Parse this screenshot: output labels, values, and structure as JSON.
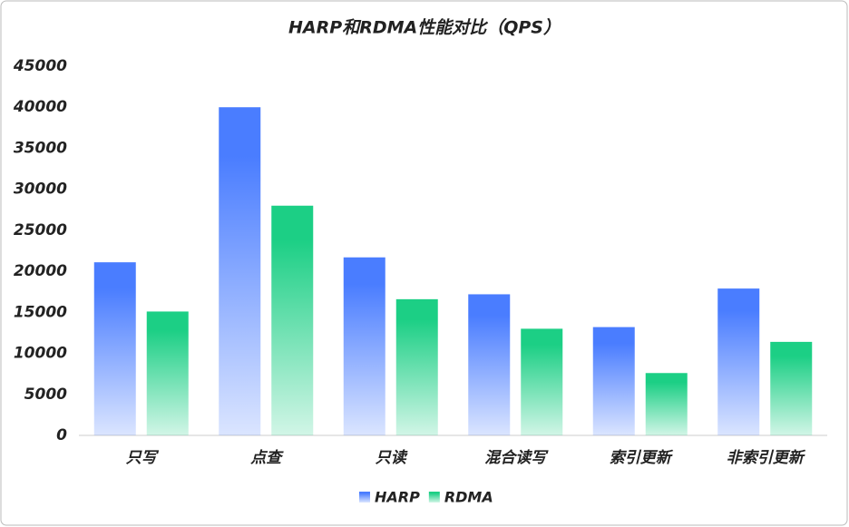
{
  "chart_data": {
    "type": "bar",
    "title": "HARP和RDMA性能对比（QPS）",
    "categories": [
      "只写",
      "点查",
      "只读",
      "混合读写",
      "索引更新",
      "非索引更新"
    ],
    "series": [
      {
        "name": "HARP",
        "color": "#4a7dff",
        "values": [
          21100,
          40000,
          21700,
          17200,
          13200,
          17900
        ]
      },
      {
        "name": "RDMA",
        "color": "#1ccf85",
        "values": [
          15100,
          28000,
          16600,
          13000,
          7600,
          11400
        ]
      }
    ],
    "ylim": [
      0,
      45000
    ],
    "yticks": [
      0,
      5000,
      10000,
      15000,
      20000,
      25000,
      30000,
      35000,
      40000,
      45000
    ],
    "grid": false,
    "legend": "bottom"
  }
}
